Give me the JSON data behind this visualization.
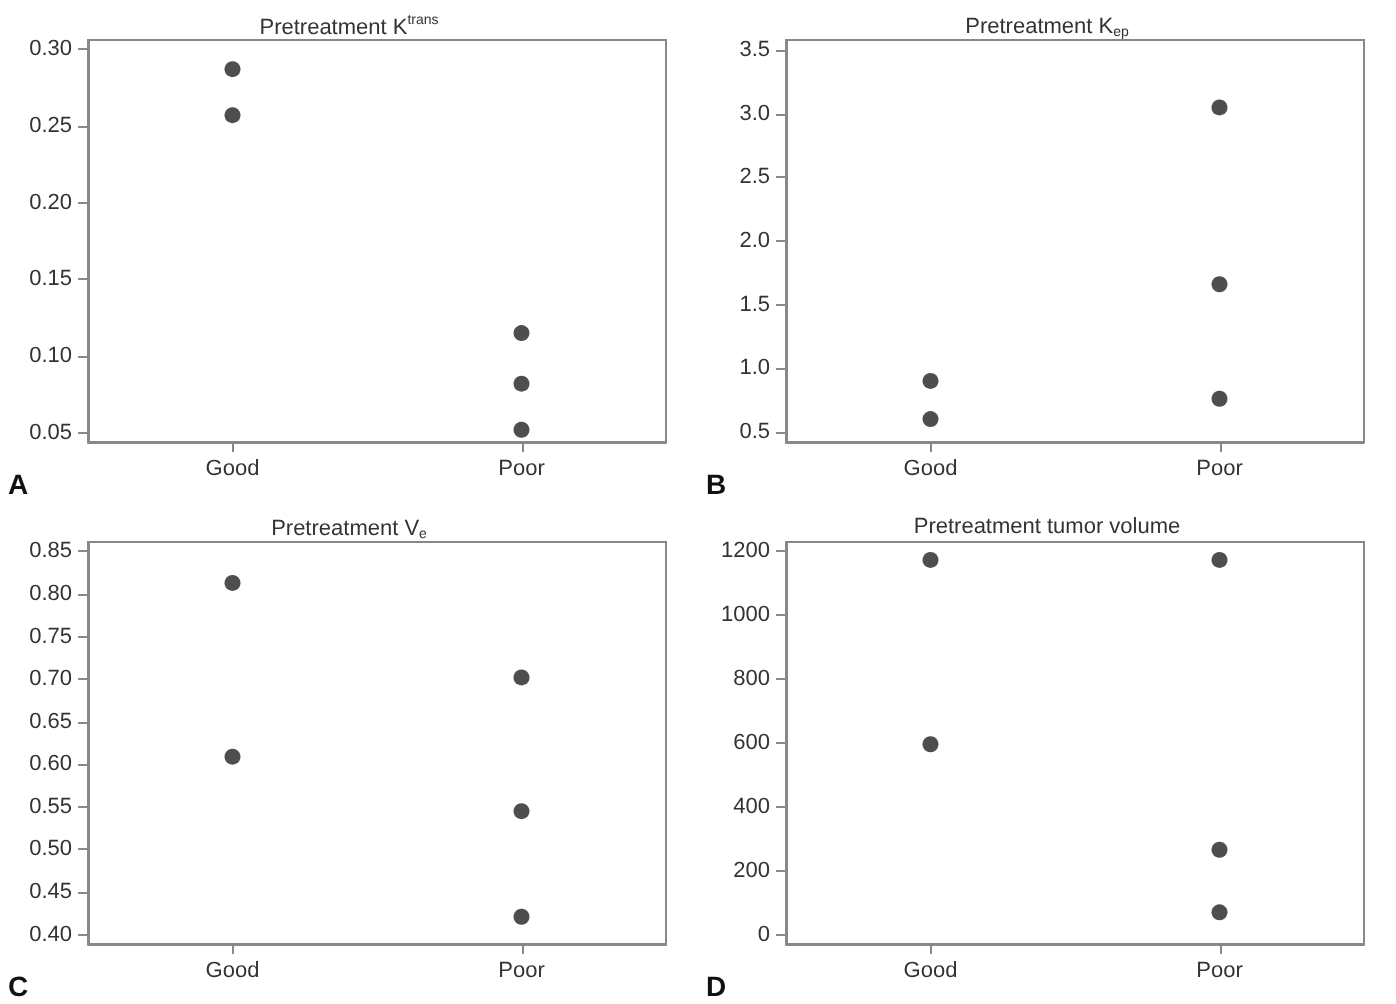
{
  "chart_data": [
    {
      "type": "scatter",
      "title": "Pretreatment K$^{trans}$",
      "categories": [
        "Good",
        "Poor"
      ],
      "series": [
        {
          "color": "#222222",
          "values": [
            0.287,
            0.115
          ]
        },
        {
          "color": "#222222",
          "values": [
            0.257,
            0.082
          ]
        },
        {
          "color": "#222222",
          "values": [
            null,
            0.052
          ]
        }
      ],
      "marker": "circle",
      "grid": false,
      "ylim": [
        0.044,
        0.306
      ],
      "yticks": [
        {
          "value": 0.05,
          "label": "0.05"
        },
        {
          "value": 0.1,
          "label": "0.10"
        },
        {
          "value": 0.15,
          "label": "0.15"
        },
        {
          "value": 0.2,
          "label": "0.20"
        },
        {
          "value": 0.25,
          "label": "0.25"
        },
        {
          "value": 0.3,
          "label": "0.30"
        }
      ],
      "annotations": [
        "A"
      ]
    },
    {
      "type": "scatter",
      "title": "Pretreatment K$_{ep}$",
      "categories": [
        "Good",
        "Poor"
      ],
      "series": [
        {
          "color": "#222222",
          "values": [
            0.9,
            3.05
          ]
        },
        {
          "color": "#222222",
          "values": [
            0.6,
            1.66
          ]
        },
        {
          "color": "#222222",
          "values": [
            null,
            0.76
          ]
        }
      ],
      "marker": "circle",
      "grid": false,
      "ylim": [
        0.42,
        3.58
      ],
      "yticks": [
        {
          "value": 0.5,
          "label": "0.5"
        },
        {
          "value": 1,
          "label": "1.0"
        },
        {
          "value": 1.5,
          "label": "1.5"
        },
        {
          "value": 2,
          "label": "2.0"
        },
        {
          "value": 2.5,
          "label": "2.5"
        },
        {
          "value": 3,
          "label": "3.0"
        },
        {
          "value": 3.5,
          "label": "3.5"
        }
      ],
      "annotations": [
        "B"
      ]
    },
    {
      "type": "scatter",
      "title": "Pretreatment V$_{e}$",
      "categories": [
        "Good",
        "Poor"
      ],
      "series": [
        {
          "color": "#222222",
          "values": [
            0.813,
            0.702
          ]
        },
        {
          "color": "#222222",
          "values": [
            0.609,
            0.545
          ]
        },
        {
          "color": "#222222",
          "values": [
            null,
            0.421
          ]
        }
      ],
      "marker": "circle",
      "grid": false,
      "ylim": [
        0.389,
        0.861
      ],
      "yticks": [
        {
          "value": 0.4,
          "label": "0.40"
        },
        {
          "value": 0.45,
          "label": "0.45"
        },
        {
          "value": 0.5,
          "label": "0.50"
        },
        {
          "value": 0.55,
          "label": "0.55"
        },
        {
          "value": 0.6,
          "label": "0.60"
        },
        {
          "value": 0.65,
          "label": "0.65"
        },
        {
          "value": 0.7,
          "label": "0.70"
        },
        {
          "value": 0.75,
          "label": "0.75"
        },
        {
          "value": 0.8,
          "label": "0.80"
        },
        {
          "value": 0.85,
          "label": "0.85"
        }
      ],
      "annotations": [
        "C"
      ]
    },
    {
      "type": "scatter",
      "title": "Pretreatment tumor volume",
      "categories": [
        "Good",
        "Poor"
      ],
      "series": [
        {
          "color": "#222222",
          "values": [
            1173,
            1173
          ]
        },
        {
          "color": "#222222",
          "values": [
            596,
            266
          ]
        },
        {
          "color": "#222222",
          "values": [
            null,
            70
          ]
        }
      ],
      "marker": "circle",
      "grid": false,
      "ylim": [
        -29,
        1229
      ],
      "yticks": [
        0,
        200,
        400,
        600,
        800,
        1000,
        1200
      ],
      "annotations": [
        "D"
      ]
    }
  ]
}
